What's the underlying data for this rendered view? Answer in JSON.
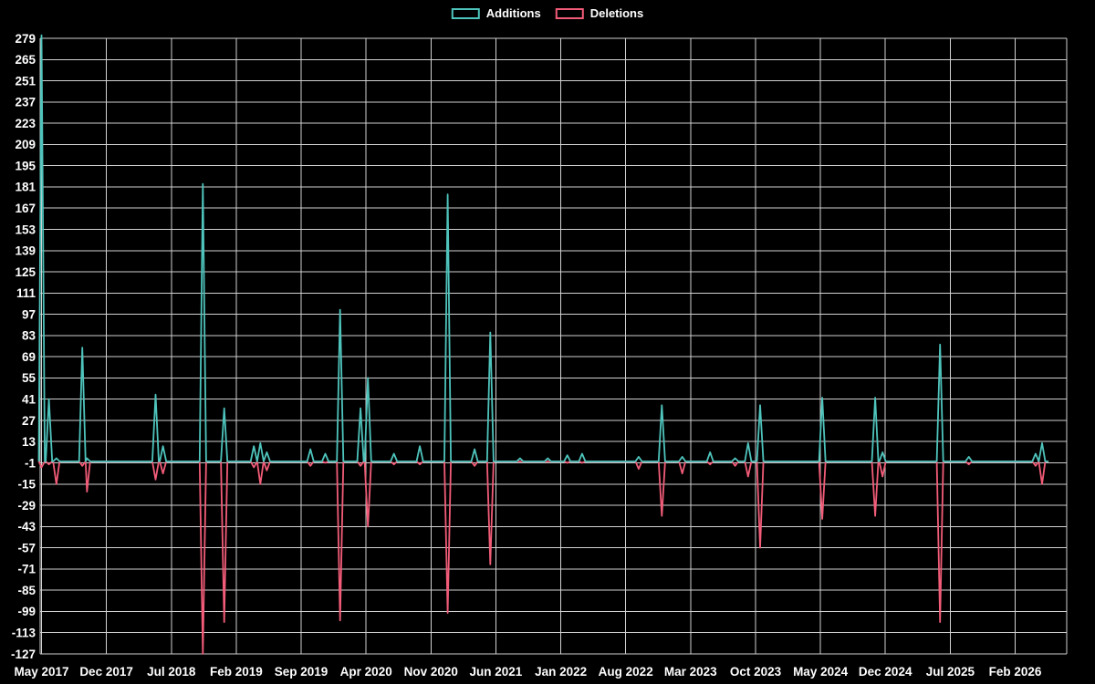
{
  "chart_data": {
    "type": "line",
    "title": "",
    "background_color": "#000000",
    "grid_color": "#e8e8e8",
    "text_color": "#ffffff",
    "legend_position": "top-center",
    "x_axis": {
      "tick_labels": [
        "May 2017",
        "Dec 2017",
        "Jul 2018",
        "Feb 2019",
        "Sep 2019",
        "Apr 2020",
        "Nov 2020",
        "Jun 2021",
        "Jan 2022",
        "Aug 2022",
        "Mar 2023",
        "Oct 2023",
        "May 2024",
        "Dec 2024",
        "Jul 2025",
        "Feb 2026"
      ],
      "tick_months": [
        0,
        7,
        14,
        21,
        28,
        35,
        42,
        49,
        56,
        63,
        70,
        77,
        84,
        91,
        98,
        105
      ]
    },
    "y_axis": {
      "ticks": [
        279,
        265,
        251,
        237,
        223,
        209,
        195,
        181,
        167,
        153,
        139,
        125,
        111,
        97,
        83,
        69,
        55,
        41,
        27,
        13,
        -1,
        -15,
        -29,
        -43,
        -57,
        -71,
        -85,
        -99,
        -113,
        -127
      ],
      "domain": [
        -127,
        279
      ]
    },
    "series": [
      {
        "name": "Additions",
        "key": "a",
        "color": "#4ec4bc"
      },
      {
        "name": "Deletions",
        "key": "d",
        "color": "#f25c78"
      }
    ],
    "baseline": 0,
    "line_start": -0.3,
    "line_end": 108.6,
    "events": [
      {
        "m": 0.0,
        "a": 281,
        "d": -4
      },
      {
        "m": 0.8,
        "a": 41,
        "d": -2
      },
      {
        "m": 1.6,
        "a": 2,
        "d": -15
      },
      {
        "m": 4.4,
        "a": 75,
        "d": -3
      },
      {
        "m": 4.9,
        "a": 2,
        "d": -20
      },
      {
        "m": 12.3,
        "a": 44,
        "d": -12
      },
      {
        "m": 13.1,
        "a": 10,
        "d": -8
      },
      {
        "m": 17.4,
        "a": 183,
        "d": -127
      },
      {
        "m": 19.7,
        "a": 35,
        "d": -106
      },
      {
        "m": 22.9,
        "a": 10,
        "d": -4
      },
      {
        "m": 23.6,
        "a": 12,
        "d": -15
      },
      {
        "m": 24.3,
        "a": 6,
        "d": -6
      },
      {
        "m": 29.0,
        "a": 8,
        "d": -3
      },
      {
        "m": 30.6,
        "a": 5,
        "d": -1
      },
      {
        "m": 32.2,
        "a": 100,
        "d": -105
      },
      {
        "m": 34.4,
        "a": 35,
        "d": -3
      },
      {
        "m": 35.2,
        "a": 55,
        "d": -43
      },
      {
        "m": 38.0,
        "a": 5,
        "d": -2
      },
      {
        "m": 40.8,
        "a": 10,
        "d": -2
      },
      {
        "m": 43.8,
        "a": 176,
        "d": -100
      },
      {
        "m": 46.7,
        "a": 8,
        "d": -3
      },
      {
        "m": 48.4,
        "a": 85,
        "d": -68
      },
      {
        "m": 51.6,
        "a": 2,
        "d": 0
      },
      {
        "m": 54.6,
        "a": 2,
        "d": 0
      },
      {
        "m": 56.7,
        "a": 4,
        "d": -1
      },
      {
        "m": 58.3,
        "a": 5,
        "d": -1
      },
      {
        "m": 64.4,
        "a": 3,
        "d": -5
      },
      {
        "m": 66.9,
        "a": 37,
        "d": -36
      },
      {
        "m": 69.1,
        "a": 3,
        "d": -8
      },
      {
        "m": 72.1,
        "a": 6,
        "d": -2
      },
      {
        "m": 74.8,
        "a": 2,
        "d": -3
      },
      {
        "m": 76.2,
        "a": 12,
        "d": -10
      },
      {
        "m": 77.5,
        "a": 37,
        "d": -57
      },
      {
        "m": 84.2,
        "a": 42,
        "d": -38
      },
      {
        "m": 89.9,
        "a": 42,
        "d": -36
      },
      {
        "m": 90.7,
        "a": 6,
        "d": -10
      },
      {
        "m": 96.9,
        "a": 77,
        "d": -106
      },
      {
        "m": 100.0,
        "a": 3,
        "d": -2
      },
      {
        "m": 107.2,
        "a": 5,
        "d": -3
      },
      {
        "m": 107.9,
        "a": 12,
        "d": -15
      }
    ]
  }
}
